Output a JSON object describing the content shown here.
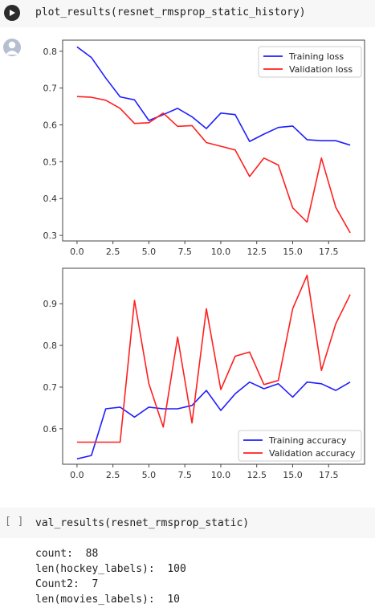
{
  "cell1": {
    "code": "plot_results(resnet_rmsprop_static_history)"
  },
  "cell2": {
    "bracket": "[ ]",
    "code": "val_results(resnet_rmsprop_static)",
    "output": [
      "count:  88",
      "len(hockey_labels):  100",
      "Count2:  7",
      "len(movies_labels):  10"
    ]
  },
  "colors": {
    "train": "#1f1fff",
    "val": "#ff1f1f"
  },
  "chart_data": [
    {
      "type": "line",
      "x": [
        0,
        1,
        2,
        3,
        4,
        5,
        6,
        7,
        8,
        9,
        10,
        11,
        12,
        13,
        14,
        15,
        16,
        17,
        18,
        19
      ],
      "xticks": [
        "0.0",
        "2.5",
        "5.0",
        "7.5",
        "10.0",
        "12.5",
        "15.0",
        "17.5"
      ],
      "xlim": [
        -1,
        20
      ],
      "ylim": [
        0.285,
        0.83
      ],
      "yticks": [
        "0.3",
        "0.4",
        "0.5",
        "0.6",
        "0.7",
        "0.8"
      ],
      "legend_position": "top-right",
      "series": [
        {
          "name": "Training loss",
          "values": [
            0.812,
            0.783,
            0.727,
            0.676,
            0.668,
            0.612,
            0.628,
            0.645,
            0.622,
            0.59,
            0.632,
            0.628,
            0.555,
            0.575,
            0.593,
            0.597,
            0.56,
            0.557,
            0.557,
            0.545
          ]
        },
        {
          "name": "Validation loss",
          "values": [
            0.677,
            0.675,
            0.667,
            0.645,
            0.604,
            0.606,
            0.632,
            0.596,
            0.598,
            0.552,
            0.542,
            0.532,
            0.46,
            0.51,
            0.491,
            0.375,
            0.336,
            0.51,
            0.376,
            0.307
          ]
        }
      ]
    },
    {
      "type": "line",
      "x": [
        0,
        1,
        2,
        3,
        4,
        5,
        6,
        7,
        8,
        9,
        10,
        11,
        12,
        13,
        14,
        15,
        16,
        17,
        18,
        19
      ],
      "xticks": [
        "0.0",
        "2.5",
        "5.0",
        "7.5",
        "10.0",
        "12.5",
        "15.0",
        "17.5"
      ],
      "xlim": [
        -1,
        20
      ],
      "ylim": [
        0.515,
        0.985
      ],
      "yticks": [
        "0.6",
        "0.7",
        "0.8",
        "0.9"
      ],
      "legend_position": "bottom-right",
      "series": [
        {
          "name": "Training accuracy",
          "values": [
            0.528,
            0.536,
            0.648,
            0.652,
            0.628,
            0.652,
            0.648,
            0.648,
            0.656,
            0.692,
            0.644,
            0.684,
            0.712,
            0.696,
            0.708,
            0.676,
            0.712,
            0.708,
            0.692,
            0.712
          ]
        },
        {
          "name": "Validation accuracy",
          "values": [
            0.568,
            0.568,
            0.568,
            0.568,
            0.908,
            0.708,
            0.604,
            0.82,
            0.614,
            0.888,
            0.694,
            0.774,
            0.784,
            0.706,
            0.716,
            0.888,
            0.968,
            0.74,
            0.852,
            0.922
          ]
        }
      ]
    }
  ]
}
